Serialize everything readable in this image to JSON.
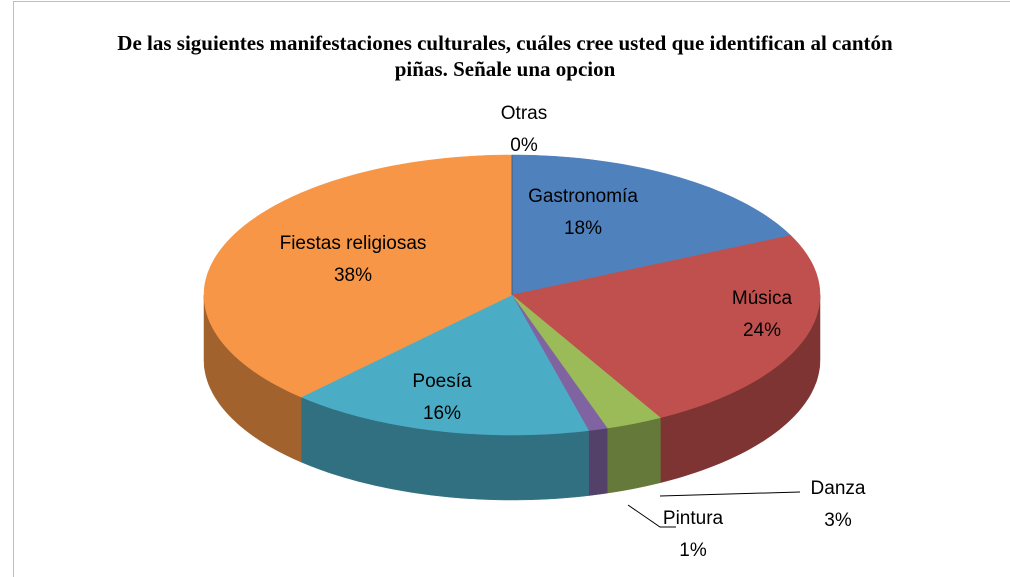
{
  "chart_data": {
    "type": "pie",
    "title": "De las siguientes manifestaciones culturales, cuáles cree usted que identifican al cantón piñas. Señale una opcion",
    "categories": [
      "Gastronomía",
      "Música",
      "Danza",
      "Pintura",
      "Poesía",
      "Fiestas religiosas",
      "Otras"
    ],
    "values": [
      18,
      24,
      3,
      1,
      16,
      38,
      0
    ],
    "value_labels": [
      "18%",
      "24%",
      "3%",
      "1%",
      "16%",
      "38%",
      "0%"
    ],
    "colors": [
      "#4f81bd",
      "#c0504d",
      "#9bbb59",
      "#8064a2",
      "#4bacc6",
      "#f79646",
      "#2c4d75"
    ]
  }
}
